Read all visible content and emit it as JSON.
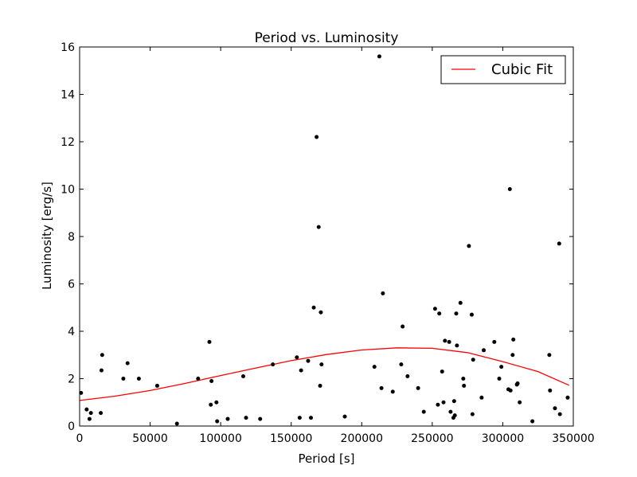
{
  "chart_data": {
    "type": "scatter",
    "title": "Period vs. Luminosity",
    "xlabel": "Period [s]",
    "ylabel": "Luminosity [erg/s]",
    "xlim": [
      0,
      350000
    ],
    "ylim": [
      0,
      16
    ],
    "xticks": [
      0,
      50000,
      100000,
      150000,
      200000,
      250000,
      300000,
      350000
    ],
    "xtick_labels": [
      "0",
      "50000",
      "100000",
      "150000",
      "200000",
      "250000",
      "300000",
      "350000"
    ],
    "yticks": [
      0,
      2,
      4,
      6,
      8,
      10,
      12,
      14,
      16
    ],
    "ytick_labels": [
      "0",
      "2",
      "4",
      "6",
      "8",
      "10",
      "12",
      "14",
      "16"
    ],
    "grid": false,
    "legend": {
      "position": "top-right",
      "entries": [
        "Cubic Fit"
      ]
    },
    "colors": {
      "points": "#000000",
      "fit": "#ff0000"
    },
    "points": [
      [
        1000,
        1.4
      ],
      [
        5000,
        0.7
      ],
      [
        7000,
        0.3
      ],
      [
        8000,
        0.55
      ],
      [
        15000,
        0.55
      ],
      [
        15500,
        2.35
      ],
      [
        16000,
        3.0
      ],
      [
        31000,
        2.0
      ],
      [
        34000,
        2.65
      ],
      [
        42000,
        2.0
      ],
      [
        55000,
        1.7
      ],
      [
        69000,
        0.1
      ],
      [
        84000,
        2.0
      ],
      [
        92000,
        3.55
      ],
      [
        93000,
        0.9
      ],
      [
        93500,
        1.9
      ],
      [
        97000,
        1.0
      ],
      [
        97500,
        0.2
      ],
      [
        105000,
        0.3
      ],
      [
        116000,
        2.1
      ],
      [
        118000,
        0.35
      ],
      [
        128000,
        0.3
      ],
      [
        137000,
        2.6
      ],
      [
        154000,
        2.9
      ],
      [
        156000,
        0.35
      ],
      [
        157000,
        2.35
      ],
      [
        162000,
        2.75
      ],
      [
        164000,
        0.35
      ],
      [
        166000,
        5.0
      ],
      [
        168000,
        12.2
      ],
      [
        169500,
        8.4
      ],
      [
        170500,
        1.7
      ],
      [
        171000,
        4.8
      ],
      [
        171500,
        2.6
      ],
      [
        188000,
        0.4
      ],
      [
        209000,
        2.5
      ],
      [
        212500,
        15.6
      ],
      [
        214000,
        1.6
      ],
      [
        215000,
        5.6
      ],
      [
        222000,
        1.45
      ],
      [
        228000,
        2.6
      ],
      [
        229000,
        4.2
      ],
      [
        232500,
        2.1
      ],
      [
        240000,
        1.6
      ],
      [
        244000,
        0.6
      ],
      [
        252000,
        4.95
      ],
      [
        254000,
        0.9
      ],
      [
        255000,
        4.75
      ],
      [
        257000,
        2.3
      ],
      [
        258000,
        1.0
      ],
      [
        259000,
        3.6
      ],
      [
        262000,
        3.55
      ],
      [
        263000,
        0.6
      ],
      [
        265000,
        0.35
      ],
      [
        265500,
        1.05
      ],
      [
        266000,
        0.45
      ],
      [
        267000,
        4.75
      ],
      [
        267500,
        3.4
      ],
      [
        270000,
        5.2
      ],
      [
        272000,
        2.0
      ],
      [
        272500,
        1.7
      ],
      [
        276000,
        7.6
      ],
      [
        278000,
        4.7
      ],
      [
        278500,
        0.5
      ],
      [
        279000,
        2.8
      ],
      [
        285000,
        1.2
      ],
      [
        286500,
        3.2
      ],
      [
        294000,
        3.55
      ],
      [
        297500,
        2.0
      ],
      [
        299000,
        2.5
      ],
      [
        304000,
        1.55
      ],
      [
        305000,
        10.0
      ],
      [
        305500,
        1.5
      ],
      [
        307000,
        3.0
      ],
      [
        307500,
        3.65
      ],
      [
        310000,
        1.75
      ],
      [
        310500,
        1.8
      ],
      [
        312000,
        1.0
      ],
      [
        321000,
        0.2
      ],
      [
        333000,
        3.0
      ],
      [
        333500,
        1.5
      ],
      [
        337000,
        0.75
      ],
      [
        340000,
        7.7
      ],
      [
        340500,
        0.5
      ],
      [
        346000,
        1.2
      ]
    ],
    "fit": {
      "name": "Cubic Fit",
      "x": [
        0,
        25000,
        50000,
        75000,
        100000,
        125000,
        150000,
        175000,
        200000,
        225000,
        250000,
        275000,
        300000,
        325000,
        347000
      ],
      "y": [
        1.08,
        1.26,
        1.5,
        1.8,
        2.13,
        2.45,
        2.76,
        3.02,
        3.21,
        3.3,
        3.28,
        3.1,
        2.72,
        2.3,
        1.72
      ]
    }
  }
}
